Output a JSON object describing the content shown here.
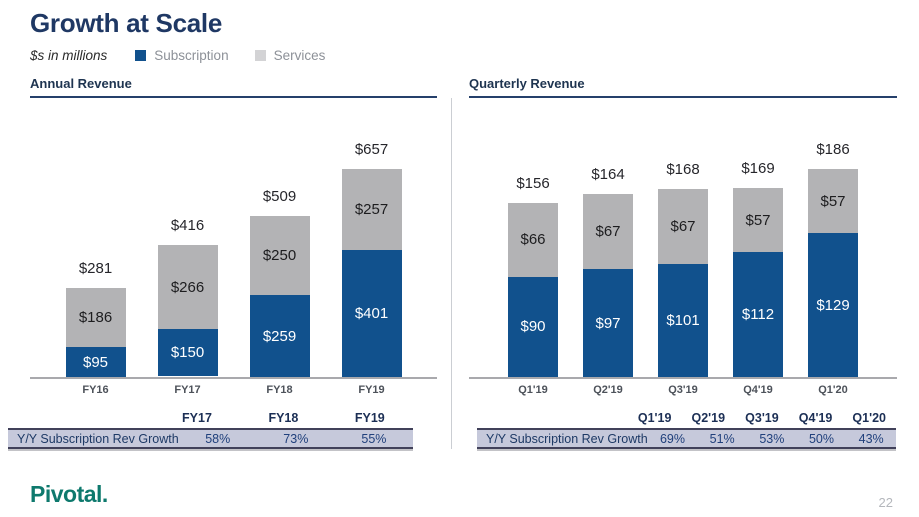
{
  "slide": {
    "title": "Growth at Scale",
    "units_note": "$s in millions",
    "logo_text": "Pivotal.",
    "page_number": "22"
  },
  "legend": {
    "items": [
      {
        "label": "Subscription",
        "color": "#11518d"
      },
      {
        "label": "Services",
        "color": "#d3d3d5"
      }
    ]
  },
  "chart_data": [
    {
      "type": "bar",
      "stacked": true,
      "title": "Annual Revenue",
      "categories": [
        "FY16",
        "FY17",
        "FY18",
        "FY19"
      ],
      "series": [
        {
          "name": "Subscription",
          "color": "#11518d",
          "label_color": "#ffffff",
          "values": [
            95,
            150,
            259,
            401
          ]
        },
        {
          "name": "Services",
          "color": "#b3b3b5",
          "label_color": "#1d1d1f",
          "values": [
            186,
            266,
            250,
            257
          ]
        }
      ],
      "totals": [
        281,
        416,
        509,
        657
      ],
      "value_prefix": "$",
      "ylim": [
        0,
        700
      ],
      "grid": false,
      "legend_position": "top",
      "growth_table": {
        "row_label": "Y/Y Subscription Rev Growth",
        "columns": [
          "FY17",
          "FY18",
          "FY19"
        ],
        "values": [
          "58%",
          "73%",
          "55%"
        ]
      }
    },
    {
      "type": "bar",
      "stacked": true,
      "title": "Quarterly Revenue",
      "categories": [
        "Q1'19",
        "Q2'19",
        "Q3'19",
        "Q4'19",
        "Q1'20"
      ],
      "series": [
        {
          "name": "Subscription",
          "color": "#11518d",
          "label_color": "#ffffff",
          "values": [
            90,
            97,
            101,
            112,
            129
          ]
        },
        {
          "name": "Services",
          "color": "#b3b3b5",
          "label_color": "#1d1d1f",
          "values": [
            66,
            67,
            67,
            57,
            57
          ]
        }
      ],
      "totals": [
        156,
        164,
        168,
        169,
        186
      ],
      "value_prefix": "$",
      "ylim": [
        0,
        200
      ],
      "grid": false,
      "legend_position": "top",
      "growth_table": {
        "row_label": "Y/Y Subscription Rev Growth",
        "columns": [
          "Q1'19",
          "Q2'19",
          "Q3'19",
          "Q4'19",
          "Q1'20"
        ],
        "values": [
          "69%",
          "51%",
          "53%",
          "50%",
          "43%"
        ]
      }
    }
  ]
}
